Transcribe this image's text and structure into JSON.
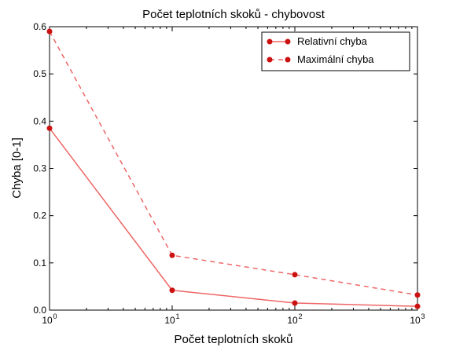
{
  "chart_data": {
    "type": "line",
    "title": "Počet teplotních skoků - chybovost",
    "xlabel": "Počet teplotních skoků",
    "ylabel": "Chyba [0-1]",
    "x_scale": "log",
    "x": [
      1,
      10,
      100,
      1000
    ],
    "xlim": [
      1,
      1000
    ],
    "ylim": [
      0,
      0.6
    ],
    "x_ticks": [
      {
        "value": 1,
        "base": "10",
        "exp": "0"
      },
      {
        "value": 10,
        "base": "10",
        "exp": "1"
      },
      {
        "value": 100,
        "base": "10",
        "exp": "2"
      },
      {
        "value": 1000,
        "base": "10",
        "exp": "3"
      }
    ],
    "y_ticks": [
      {
        "value": 0.0,
        "label": "0.0"
      },
      {
        "value": 0.1,
        "label": "0.1"
      },
      {
        "value": 0.2,
        "label": "0.2"
      },
      {
        "value": 0.3,
        "label": "0.3"
      },
      {
        "value": 0.4,
        "label": "0.4"
      },
      {
        "value": 0.5,
        "label": "0.5"
      },
      {
        "value": 0.6,
        "label": "0.6"
      }
    ],
    "grid": false,
    "legend_position": "top-right",
    "series": [
      {
        "name": "Relativní chyba",
        "values": [
          0.385,
          0.042,
          0.015,
          0.008
        ],
        "line_style": "solid",
        "color": "#d9534f"
      },
      {
        "name": "Maximální chyba",
        "values": [
          0.59,
          0.116,
          0.075,
          0.032
        ],
        "line_style": "dashed",
        "color": "#d9534f"
      }
    ]
  },
  "colors": {
    "line": "#ee6666",
    "marker": "#cc1111",
    "axis": "#000000"
  }
}
